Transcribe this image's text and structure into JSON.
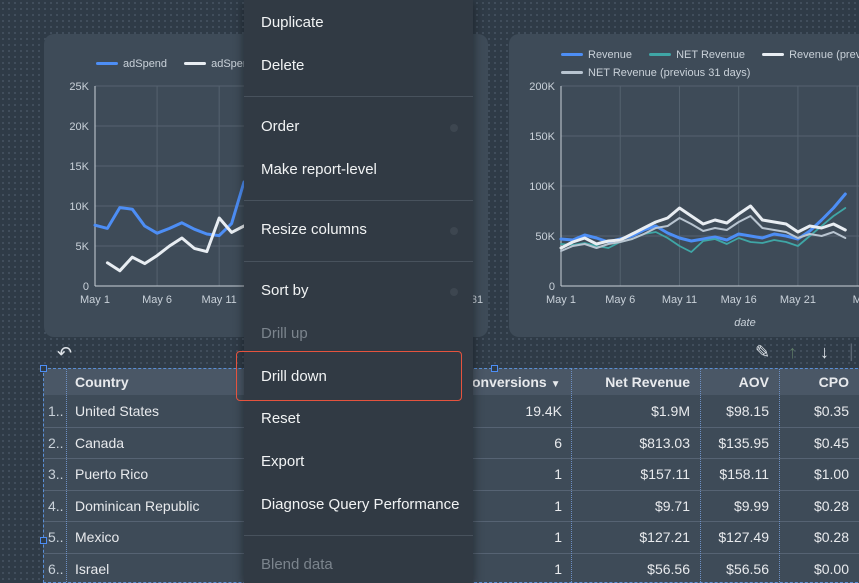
{
  "left_chart": {
    "legend": [
      "adSpend",
      "adSper"
    ],
    "colors": [
      "#4d8ef5",
      "#e8edf2"
    ],
    "y_ticks": [
      "25K",
      "20K",
      "15K",
      "10K",
      "5K",
      "0"
    ],
    "x_ticks": [
      "May 1",
      "May 6",
      "May 11"
    ],
    "x_partial_tick": "31"
  },
  "right_chart": {
    "legend_row1": [
      "Revenue",
      "NET Revenue",
      "Revenue (previ"
    ],
    "legend_row2": [
      "NET Revenue (previous 31 days)"
    ],
    "colors": [
      "#4d8ef5",
      "#3fa6a6",
      "#e8edf2",
      "#b8c4d0"
    ],
    "y_ticks": [
      "200K",
      "150K",
      "100K",
      "50K",
      "0"
    ],
    "x_ticks": [
      "May 1",
      "May 6",
      "May 11",
      "May 16",
      "May 21",
      "M"
    ],
    "xlabel": "date"
  },
  "chart_data": [
    {
      "type": "line",
      "ylim": [
        0,
        25000
      ],
      "x": [
        1,
        2,
        3,
        4,
        5,
        6,
        7,
        8,
        9,
        10,
        11,
        12,
        13
      ],
      "series": [
        {
          "name": "adSpend",
          "values": [
            7600,
            7200,
            9800,
            9600,
            7500,
            6600,
            7200,
            7900,
            7100,
            6500,
            6300,
            7800,
            13000
          ]
        },
        {
          "name": "adSper",
          "values": [
            null,
            2900,
            1900,
            3600,
            2800,
            3800,
            5000,
            6000,
            4700,
            4300,
            8500,
            6700,
            7500
          ]
        }
      ]
    },
    {
      "type": "line",
      "xlabel": "date",
      "ylim": [
        0,
        200000
      ],
      "x": [
        1,
        2,
        3,
        4,
        5,
        6,
        7,
        8,
        9,
        10,
        11,
        12,
        13,
        14,
        15,
        16,
        17,
        18,
        19,
        20,
        21,
        22,
        23,
        24,
        25
      ],
      "series": [
        {
          "name": "Revenue",
          "values": [
            47000,
            46000,
            51000,
            48000,
            44000,
            47000,
            50000,
            56000,
            60000,
            53000,
            48000,
            45000,
            47000,
            49000,
            46000,
            52000,
            50000,
            48000,
            52000,
            50000,
            47000,
            55000,
            66000,
            78000,
            92000
          ]
        },
        {
          "name": "NET Revenue",
          "values": [
            42000,
            41000,
            43000,
            40000,
            38000,
            44000,
            47000,
            52000,
            54000,
            48000,
            40000,
            34000,
            45000,
            47000,
            42000,
            48000,
            44000,
            43000,
            46000,
            44000,
            40000,
            50000,
            60000,
            70000,
            78000
          ]
        },
        {
          "name": "Revenue (previ",
          "values": [
            38000,
            44000,
            48000,
            42000,
            45000,
            46000,
            52000,
            58000,
            64000,
            68000,
            78000,
            70000,
            62000,
            66000,
            63000,
            72000,
            80000,
            66000,
            64000,
            62000,
            54000,
            60000,
            58000,
            62000,
            56000
          ]
        },
        {
          "name": "NET Revenue (previous 31 days)",
          "values": [
            35000,
            40000,
            42000,
            38000,
            42000,
            44000,
            47000,
            52000,
            58000,
            60000,
            68000,
            62000,
            55000,
            58000,
            56000,
            64000,
            70000,
            58000,
            56000,
            54000,
            48000,
            52000,
            50000,
            54000,
            48000
          ]
        }
      ]
    }
  ],
  "table": {
    "headers": {
      "country": "Country",
      "conversions": "onversions",
      "net_revenue": "Net Revenue",
      "aov": "AOV",
      "cpo": "CPO"
    },
    "sort_indicator": "▼",
    "rows": [
      {
        "idx": "1..",
        "country": "United States",
        "conversions": "19.4K",
        "net_revenue": "$1.9M",
        "aov": "$98.15",
        "cpo": "$0.35"
      },
      {
        "idx": "2..",
        "country": "Canada",
        "conversions": "6",
        "net_revenue": "$813.03",
        "aov": "$135.95",
        "cpo": "$0.45"
      },
      {
        "idx": "3..",
        "country": "Puerto Rico",
        "conversions": "1",
        "net_revenue": "$157.11",
        "aov": "$158.11",
        "cpo": "$1.00"
      },
      {
        "idx": "4..",
        "country": "Dominican Republic",
        "conversions": "1",
        "net_revenue": "$9.71",
        "aov": "$9.99",
        "cpo": "$0.28"
      },
      {
        "idx": "5..",
        "country": "Mexico",
        "conversions": "1",
        "net_revenue": "$127.21",
        "aov": "$127.49",
        "cpo": "$0.28"
      },
      {
        "idx": "6..",
        "country": "Israel",
        "conversions": "1",
        "net_revenue": "$56.56",
        "aov": "$56.56",
        "cpo": "$0.00"
      }
    ]
  },
  "toolbar": {
    "undo_icon": "undo-icon",
    "edit_icon": "pencil-icon",
    "up_icon": "arrow-up-icon",
    "down_icon": "arrow-down-icon"
  },
  "context_menu": {
    "duplicate": "Duplicate",
    "delete": "Delete",
    "order": "Order",
    "make_report_level": "Make report-level",
    "resize_columns": "Resize columns",
    "sort_by": "Sort by",
    "drill_up": "Drill up",
    "drill_down": "Drill down",
    "reset": "Reset",
    "export": "Export",
    "diagnose": "Diagnose Query Performance",
    "blend_data": "Blend data",
    "highlight_color": "#e5533e"
  }
}
